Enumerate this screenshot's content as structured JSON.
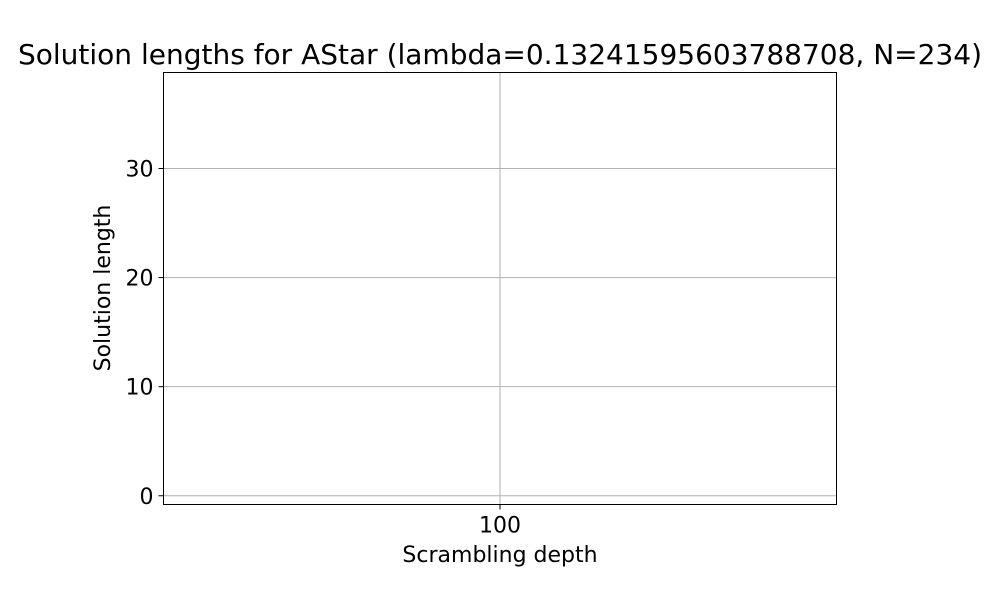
{
  "chart_data": {
    "type": "scatter",
    "title": "Solution lengths for AStar (lambda=0.13241595603788708, N=234)",
    "xlabel": "Scrambling depth",
    "ylabel": "Solution length",
    "x_categories": [
      "100"
    ],
    "xlim": [
      99.5,
      100.5
    ],
    "y_ticks": [
      0,
      10,
      20,
      30
    ],
    "ylim": [
      -0.8,
      38.8
    ],
    "grid": true,
    "series": []
  }
}
